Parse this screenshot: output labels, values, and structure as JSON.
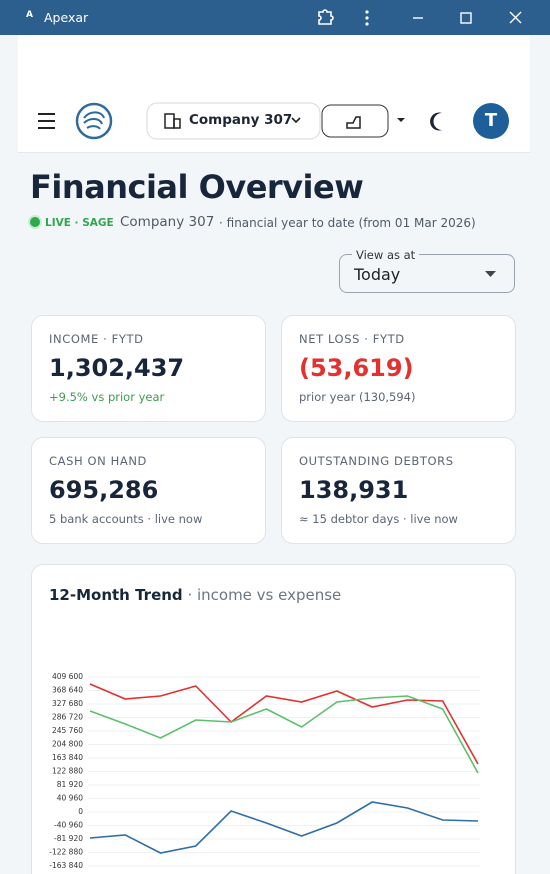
{
  "window": {
    "title": "Apexar"
  },
  "header": {
    "company": "Company 307",
    "avatar": "T"
  },
  "page": {
    "title": "Financial Overview",
    "live": "LIVE · SAGE",
    "company": "Company 307",
    "period": "· financial year to date (from 01 Mar 2026)",
    "view_label": "View as at",
    "view_value": "Today"
  },
  "cards": [
    {
      "label": "INCOME · FYTD",
      "value": "1,302,437",
      "sub": "+9.5% vs prior year"
    },
    {
      "label": "NET LOSS · FYTD",
      "value": "(53,619)",
      "sub": "prior year (130,594)"
    },
    {
      "label": "CASH ON HAND",
      "value": "695,286",
      "sub": "5 bank accounts · live now"
    },
    {
      "label": "OUTSTANDING DEBTORS",
      "value": "138,931",
      "sub": "≈ 15 debtor days · live now"
    }
  ],
  "chart_data": {
    "type": "line",
    "title": "12-Month Trend",
    "subtitle": "· income vs expense",
    "categories": [
      null,
      null,
      null,
      null,
      null,
      null,
      null,
      null,
      null,
      null,
      null,
      null
    ],
    "series": [
      {
        "color": "#e3312f",
        "values": [
          388360,
          342850,
          351950,
          382300,
          273070,
          351950,
          333750,
          367120,
          318580,
          339800,
          336780,
          145640
        ]
      },
      {
        "color": "#5cbf6a",
        "values": [
          306440,
          267000,
          224500,
          279100,
          273100,
          312500,
          257900,
          333750,
          345900,
          351950,
          312500,
          118300
        ]
      },
      {
        "color": "#2f6ea6",
        "values": [
          -78900,
          -69800,
          -124400,
          -103200,
          3000,
          -33400,
          -72800,
          -33400,
          30300,
          12100,
          -24300,
          -27300
        ]
      }
    ],
    "ylim": [
      -163840,
      409600
    ],
    "yticks": [
      {
        "value": -163840,
        "label": "-163 840"
      },
      {
        "value": -122880,
        "label": "-122 880"
      },
      {
        "value": -81920,
        "label": "-81 920"
      },
      {
        "value": -40960,
        "label": "-40 960"
      },
      0,
      {
        "value": 40960,
        "label": "40 960"
      },
      {
        "value": 81920,
        "label": "81 920"
      },
      {
        "value": 122880,
        "label": "122 880"
      },
      {
        "value": 163840,
        "label": "163 840"
      },
      {
        "value": 204800,
        "label": "204 800"
      },
      {
        "value": 245760,
        "label": "245 760"
      },
      {
        "value": 286720,
        "label": "286 720"
      },
      {
        "value": 327680,
        "label": "327 680"
      },
      {
        "value": 368640,
        "label": "368 640"
      },
      {
        "value": 409600,
        "label": "409 600"
      }
    ],
    "grid": true
  }
}
